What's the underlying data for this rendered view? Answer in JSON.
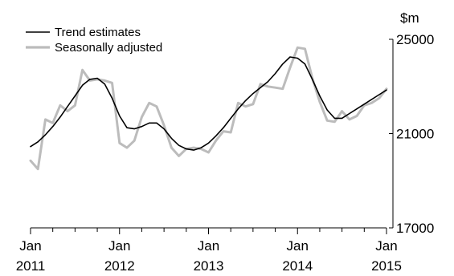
{
  "chart_data": {
    "type": "line",
    "title": "",
    "xlabel": "",
    "ylabel": "$m",
    "ylim": [
      17000,
      25000
    ],
    "y_ticks": [
      17000,
      21000,
      25000
    ],
    "y_tick_labels": [
      "17000",
      "21000",
      "25000"
    ],
    "y_axis_side": "right",
    "x_ticks": [
      {
        "line1": "Jan",
        "line2": "2011"
      },
      {
        "line1": "Jan",
        "line2": "2012"
      },
      {
        "line1": "Jan",
        "line2": "2013"
      },
      {
        "line1": "Jan",
        "line2": "2014"
      },
      {
        "line1": "Jan",
        "line2": "2015"
      }
    ],
    "x_tick_months": [
      0,
      12,
      24,
      36,
      48
    ],
    "xlim": [
      0,
      48
    ],
    "grid": false,
    "legend_position": "top-left",
    "series": [
      {
        "name": "Trend estimates",
        "color": "#000000",
        "x": [
          0,
          1,
          2,
          3,
          4,
          5,
          6,
          7,
          8,
          9,
          10,
          11,
          12,
          13,
          14,
          15,
          16,
          17,
          18,
          19,
          20,
          21,
          22,
          23,
          24,
          25,
          26,
          27,
          28,
          29,
          30,
          31,
          32,
          33,
          34,
          35,
          36,
          37,
          38,
          39,
          40,
          41,
          42,
          43,
          44,
          45,
          46,
          47,
          48
        ],
        "values": [
          20450,
          20650,
          20950,
          21300,
          21700,
          22150,
          22600,
          23050,
          23300,
          23350,
          23100,
          22500,
          21750,
          21250,
          21200,
          21300,
          21450,
          21450,
          21200,
          20800,
          20500,
          20350,
          20300,
          20400,
          20600,
          20900,
          21250,
          21650,
          22050,
          22400,
          22700,
          22950,
          23200,
          23550,
          23950,
          24250,
          24200,
          23950,
          23300,
          22600,
          22000,
          21650,
          21650,
          21850,
          22050,
          22250,
          22450,
          22650,
          22850
        ]
      },
      {
        "name": "Seasonally adjusted",
        "color": "#bcbcbc",
        "x": [
          0,
          1,
          2,
          3,
          4,
          5,
          6,
          7,
          8,
          9,
          10,
          11,
          12,
          13,
          14,
          15,
          16,
          17,
          18,
          19,
          20,
          21,
          22,
          23,
          24,
          25,
          26,
          27,
          28,
          29,
          30,
          31,
          32,
          33,
          34,
          35,
          36,
          37,
          38,
          39,
          40,
          41,
          42,
          43,
          44,
          45,
          46,
          47,
          48
        ],
        "values": [
          19850,
          19500,
          21600,
          21450,
          22200,
          21950,
          22200,
          23700,
          23250,
          23300,
          23250,
          23150,
          20600,
          20400,
          20700,
          21700,
          22300,
          22150,
          21350,
          20400,
          20050,
          20350,
          20400,
          20350,
          20200,
          20700,
          21100,
          21050,
          22300,
          22150,
          22250,
          23100,
          23000,
          22950,
          22900,
          23800,
          24650,
          24600,
          23350,
          22350,
          21550,
          21500,
          21950,
          21600,
          21750,
          22200,
          22300,
          22500,
          22900
        ]
      }
    ]
  }
}
